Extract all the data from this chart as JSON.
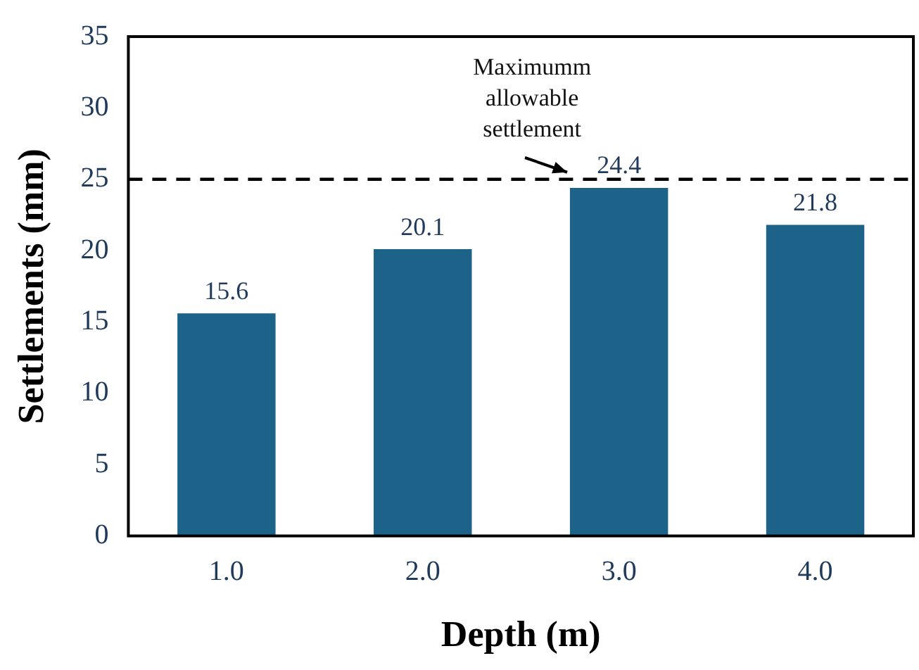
{
  "chart_data": {
    "type": "bar",
    "xlabel": "Depth (m)",
    "ylabel": "Settlements (mm)",
    "categories": [
      "1.0",
      "2.0",
      "3.0",
      "4.0"
    ],
    "values": [
      15.6,
      20.1,
      24.4,
      21.8
    ],
    "color": "#1d6389",
    "ylim": [
      0,
      35
    ],
    "yticks": [
      0,
      5,
      10,
      15,
      20,
      25,
      30,
      35
    ],
    "grid": false,
    "legend": false,
    "data_labels": true,
    "ref_lines": [
      {
        "axis": "y",
        "value": 25,
        "label": "Maximumm allowable settlement",
        "color": "#000000",
        "line_style": "dashed"
      }
    ]
  }
}
